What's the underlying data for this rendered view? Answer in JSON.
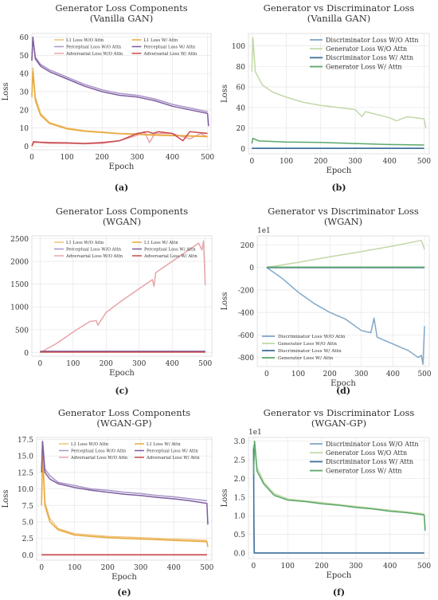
{
  "panels": [
    {
      "type": "line",
      "title": [
        "Generator Loss Components",
        "(Vanilla GAN)"
      ],
      "xlabel": "Epoch",
      "ylabel": "Loss",
      "xlim": [
        0,
        510
      ],
      "ylim": [
        -2,
        62
      ],
      "xticks": [
        0,
        100,
        200,
        300,
        400,
        500
      ],
      "yticks": [
        0,
        10,
        20,
        30,
        40,
        50,
        60
      ],
      "multiplier": "",
      "caption": "(a)",
      "legend": {
        "cols": 2,
        "font": 5.3,
        "pos": "top"
      },
      "series": [
        {
          "name": "L1 Loss W/O Attn",
          "color": "#f0c27b",
          "x": [
            0,
            3,
            10,
            25,
            50,
            100,
            150,
            200,
            250,
            300,
            350,
            400,
            450,
            500
          ],
          "y": [
            28,
            43,
            27,
            18,
            13,
            10,
            8.5,
            7.8,
            7,
            6.8,
            6.3,
            6,
            5.8,
            5.5
          ]
        },
        {
          "name": "Perceptual Loss W/O Attn",
          "color": "#a994c8",
          "x": [
            0,
            3,
            10,
            25,
            50,
            100,
            150,
            200,
            250,
            300,
            350,
            400,
            450,
            500
          ],
          "y": [
            48,
            59,
            49,
            45,
            42,
            38,
            34,
            31,
            29,
            28,
            26,
            23,
            21,
            19
          ]
        },
        {
          "name": "Adversarial Loss W/O Attn",
          "color": "#e8a4a8",
          "x": [
            0,
            5,
            20,
            50,
            100,
            150,
            200,
            250,
            300,
            320,
            335,
            350,
            400,
            450,
            480,
            500
          ],
          "y": [
            0,
            2,
            2,
            1.5,
            1.5,
            1.3,
            1.5,
            3,
            6,
            8,
            2,
            7,
            7,
            4,
            7,
            5
          ]
        },
        {
          "name": "L1 Loss W/ Attn",
          "color": "#e7a93c",
          "x": [
            0,
            3,
            10,
            25,
            50,
            100,
            150,
            200,
            250,
            300,
            350,
            400,
            450,
            500
          ],
          "y": [
            27,
            41,
            25,
            17,
            12.5,
            9.5,
            8.2,
            7.5,
            6.8,
            6.5,
            6,
            5.8,
            5.5,
            5.2
          ]
        },
        {
          "name": "Perceptual Loss W/ Attn",
          "color": "#7e5c9e",
          "x": [
            0,
            3,
            10,
            25,
            50,
            100,
            150,
            200,
            250,
            300,
            350,
            400,
            450,
            500,
            503
          ],
          "y": [
            47,
            60,
            48,
            44,
            41,
            37,
            33,
            30,
            28,
            27,
            25,
            22,
            20,
            18,
            11
          ]
        },
        {
          "name": "Adversarial Loss W/ Attn",
          "color": "#c94a4c",
          "x": [
            0,
            5,
            20,
            50,
            100,
            150,
            200,
            250,
            300,
            330,
            345,
            360,
            400,
            430,
            450,
            500
          ],
          "y": [
            0,
            2.5,
            2.2,
            2,
            1.8,
            1.5,
            2,
            3,
            7,
            8,
            7,
            8,
            7,
            3,
            8,
            7
          ]
        }
      ]
    },
    {
      "type": "line",
      "title": [
        "Generator vs Discriminator Loss",
        "(Vanilla GAN)"
      ],
      "xlabel": "Epoch",
      "ylabel": "Loss",
      "xlim": [
        -10,
        515
      ],
      "ylim": [
        -5,
        112
      ],
      "xticks": [
        0,
        100,
        200,
        300,
        400,
        500
      ],
      "yticks": [
        0,
        20,
        40,
        60,
        80,
        100
      ],
      "multiplier": "",
      "caption": "(b)",
      "legend": {
        "cols": 1,
        "font": 8,
        "pos": "top-right"
      },
      "series": [
        {
          "name": "Discriminator Loss W/O Attn",
          "color": "#7fa8c9",
          "x": [
            0,
            500
          ],
          "y": [
            0.5,
            0.5
          ]
        },
        {
          "name": "Generator Loss W/O Attn",
          "color": "#c2d8a8",
          "x": [
            0,
            3,
            10,
            30,
            60,
            100,
            150,
            200,
            250,
            300,
            320,
            330,
            400,
            420,
            450,
            500,
            505
          ],
          "y": [
            75,
            108,
            75,
            62,
            55,
            50,
            45,
            42,
            40,
            38,
            31,
            36,
            30,
            27,
            31,
            29,
            20
          ]
        },
        {
          "name": "Discriminator Loss W/ Attn",
          "color": "#3e6f9a",
          "x": [
            0,
            500
          ],
          "y": [
            0.3,
            0.3
          ]
        },
        {
          "name": "Generator Loss W/ Attn",
          "color": "#5aa86a",
          "x": [
            0,
            3,
            20,
            100,
            200,
            300,
            400,
            500
          ],
          "y": [
            5,
            10,
            7.5,
            6.5,
            6,
            5,
            4,
            3.5
          ]
        }
      ]
    },
    {
      "type": "line",
      "title": [
        "Generator Loss Components",
        "(WGAN)"
      ],
      "xlabel": "Epoch",
      "ylabel": "",
      "xlim": [
        -25,
        520
      ],
      "ylim": [
        -80,
        2560
      ],
      "xticks": [
        0,
        100,
        200,
        300,
        400,
        500
      ],
      "yticks": [
        0,
        500,
        1000,
        1500,
        2000,
        2500
      ],
      "multiplier": "",
      "caption": "(c)",
      "legend": {
        "cols": 2,
        "font": 5.3,
        "pos": "top"
      },
      "series": [
        {
          "name": "L1 Loss W/O Attn",
          "color": "#f0c27b",
          "x": [
            0,
            500
          ],
          "y": [
            20,
            20
          ]
        },
        {
          "name": "Perceptual Loss W/O Attn",
          "color": "#a994c8",
          "x": [
            0,
            500
          ],
          "y": [
            30,
            30
          ]
        },
        {
          "name": "Adversarial Loss W/O Attn",
          "color": "#e8a4a8",
          "x": [
            0,
            50,
            100,
            150,
            170,
            175,
            200,
            250,
            300,
            340,
            345,
            350,
            400,
            450,
            480,
            490,
            495,
            500
          ],
          "y": [
            0,
            200,
            450,
            680,
            700,
            600,
            880,
            1150,
            1400,
            1600,
            1450,
            1750,
            2000,
            2250,
            2400,
            2250,
            2450,
            1480
          ]
        },
        {
          "name": "L1 Loss W/ Attn",
          "color": "#e7a93c",
          "x": [
            0,
            500
          ],
          "y": [
            15,
            15
          ]
        },
        {
          "name": "Perceptual Loss W/ Attn",
          "color": "#7e5c9e",
          "x": [
            0,
            500
          ],
          "y": [
            25,
            25
          ]
        },
        {
          "name": "Adversarial Loss W/ Attn",
          "color": "#c94a4c",
          "x": [
            0,
            500
          ],
          "y": [
            10,
            10
          ]
        }
      ]
    },
    {
      "type": "line",
      "title": [
        "Generator vs Discriminator Loss",
        "(WGAN)"
      ],
      "xlabel": "Epoch",
      "ylabel": "Loss",
      "xlim": [
        -30,
        515
      ],
      "ylim": [
        -880,
        280
      ],
      "xticks": [
        0,
        100,
        200,
        300,
        400,
        500
      ],
      "yticks": [
        -800,
        -600,
        -400,
        -200,
        0,
        200
      ],
      "multiplier": "1e1",
      "caption": "(d)",
      "legend": {
        "cols": 1,
        "font": 5.8,
        "pos": "bottom-left"
      },
      "series": [
        {
          "name": "Discriminator Loss W/O Attn",
          "color": "#7fa8c9",
          "x": [
            0,
            50,
            100,
            150,
            200,
            250,
            300,
            330,
            340,
            350,
            400,
            450,
            480,
            490,
            495,
            500
          ],
          "y": [
            0,
            -100,
            -220,
            -320,
            -400,
            -460,
            -560,
            -580,
            -450,
            -620,
            -680,
            -740,
            -800,
            -780,
            -860,
            -520
          ]
        },
        {
          "name": "Generator Loss W/O Attn",
          "color": "#c2d8a8",
          "x": [
            0,
            100,
            200,
            300,
            400,
            490,
            500
          ],
          "y": [
            0,
            45,
            95,
            140,
            190,
            240,
            160
          ]
        },
        {
          "name": "Discriminator Loss W/ Attn",
          "color": "#3e6f9a",
          "x": [
            0,
            500
          ],
          "y": [
            -2,
            -2
          ]
        },
        {
          "name": "Generator Loss W/ Attn",
          "color": "#5aa86a",
          "x": [
            0,
            500
          ],
          "y": [
            2,
            2
          ]
        }
      ]
    },
    {
      "type": "line",
      "title": [
        "Generator Loss Components",
        "(WGAN-GP)"
      ],
      "xlabel": "Epoch",
      "ylabel": "Loss",
      "xlim": [
        -15,
        515
      ],
      "ylim": [
        -0.8,
        17.8
      ],
      "xticks": [
        0,
        100,
        200,
        300,
        400,
        500
      ],
      "yticks": [
        0.0,
        2.5,
        5.0,
        7.5,
        10.0,
        12.5,
        15.0,
        17.5
      ],
      "multiplier": "",
      "caption": "(e)",
      "legend": {
        "cols": 2,
        "font": 5.3,
        "pos": "top"
      },
      "series": [
        {
          "name": "L1 Loss W/O Attn",
          "color": "#f0c27b",
          "x": [
            0,
            3,
            10,
            25,
            50,
            100,
            150,
            200,
            250,
            300,
            350,
            400,
            450,
            500
          ],
          "y": [
            8,
            16,
            8,
            5.5,
            4,
            3.2,
            3,
            2.8,
            2.7,
            2.6,
            2.5,
            2.4,
            2.3,
            2.2
          ]
        },
        {
          "name": "Perceptual Loss W/O Attn",
          "color": "#a994c8",
          "x": [
            0,
            3,
            10,
            25,
            50,
            100,
            150,
            200,
            250,
            300,
            350,
            400,
            450,
            500
          ],
          "y": [
            13,
            17,
            13,
            12,
            11,
            10.5,
            10,
            9.8,
            9.5,
            9.3,
            9,
            8.8,
            8.5,
            8.2
          ]
        },
        {
          "name": "Adversarial Loss W/O Attn",
          "color": "#e8a4a8",
          "x": [
            0,
            500
          ],
          "y": [
            0.05,
            0.05
          ]
        },
        {
          "name": "L1 Loss W/ Attn",
          "color": "#e7a93c",
          "x": [
            0,
            3,
            10,
            25,
            50,
            100,
            150,
            200,
            250,
            300,
            350,
            400,
            450,
            500,
            503
          ],
          "y": [
            7.5,
            15,
            7.5,
            5,
            3.8,
            3,
            2.8,
            2.6,
            2.5,
            2.4,
            2.3,
            2.2,
            2.1,
            2,
            1.2
          ]
        },
        {
          "name": "Perceptual Loss W/ Attn",
          "color": "#7e5c9e",
          "x": [
            0,
            3,
            10,
            25,
            50,
            100,
            150,
            200,
            250,
            300,
            350,
            400,
            450,
            500,
            503
          ],
          "y": [
            12.5,
            17.2,
            12.5,
            11.5,
            10.8,
            10.2,
            9.8,
            9.5,
            9.2,
            9,
            8.7,
            8.5,
            8.2,
            7.8,
            4.6
          ]
        },
        {
          "name": "Adversarial Loss W/ Attn",
          "color": "#c94a4c",
          "x": [
            0,
            500
          ],
          "y": [
            0,
            0
          ]
        }
      ]
    },
    {
      "type": "line",
      "title": [
        "Generator vs Discriminator Loss",
        "(WGAN-GP)"
      ],
      "xlabel": "Epoch",
      "ylabel": "Loss",
      "xlim": [
        -15,
        515
      ],
      "ylim": [
        -0.15,
        3.1
      ],
      "xticks": [
        0,
        100,
        200,
        300,
        400,
        500
      ],
      "yticks": [
        0.0,
        0.5,
        1.0,
        1.5,
        2.0,
        2.5,
        3.0
      ],
      "multiplier": "1e1",
      "caption": "(f)",
      "legend": {
        "cols": 1,
        "font": 8,
        "pos": "top-right"
      },
      "series": [
        {
          "name": "Discriminator Loss W/O Attn",
          "color": "#7fa8c9",
          "x": [
            0,
            1,
            2,
            500
          ],
          "y": [
            2.9,
            0.8,
            0,
            0
          ]
        },
        {
          "name": "Generator Loss W/O Attn",
          "color": "#c2d8a8",
          "x": [
            0,
            3,
            10,
            30,
            60,
            100,
            150,
            200,
            250,
            300,
            350,
            400,
            450,
            500,
            503
          ],
          "y": [
            2.2,
            3,
            2.3,
            1.9,
            1.6,
            1.45,
            1.4,
            1.35,
            1.3,
            1.25,
            1.2,
            1.15,
            1.1,
            1.05,
            0.65
          ]
        },
        {
          "name": "Discriminator Loss W/ Attn",
          "color": "#3e6f9a",
          "x": [
            0,
            1,
            2,
            500
          ],
          "y": [
            2.8,
            0.6,
            0,
            0
          ]
        },
        {
          "name": "Generator Loss W/ Attn",
          "color": "#5aa86a",
          "x": [
            0,
            3,
            10,
            30,
            60,
            100,
            150,
            200,
            250,
            300,
            350,
            400,
            450,
            500,
            503
          ],
          "y": [
            2.1,
            3,
            2.2,
            1.85,
            1.55,
            1.42,
            1.38,
            1.32,
            1.28,
            1.22,
            1.18,
            1.12,
            1.08,
            1.02,
            0.6
          ]
        }
      ]
    }
  ]
}
